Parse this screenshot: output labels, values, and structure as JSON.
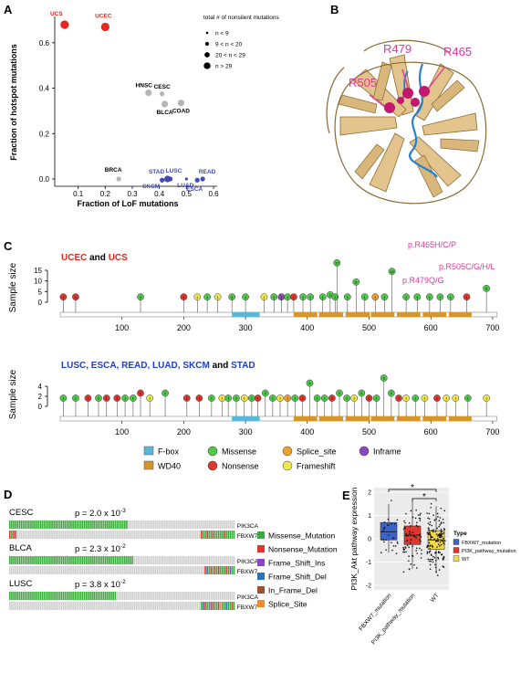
{
  "panels": {
    "A": "A",
    "B": "B",
    "C": "C",
    "D": "D",
    "E": "E"
  },
  "panelA": {
    "xlabel": "Fraction of LoF mutations",
    "ylabel": "Fraction of hotspot mutations",
    "xticks": [
      "0.1",
      "0.2",
      "0.3",
      "0.4",
      "0.5",
      "0.6"
    ],
    "yticks": [
      "0.0",
      "0.2",
      "0.4",
      "0.6"
    ],
    "legend_title": "total # of nonsilent mutations",
    "legend_items": [
      "n < 9",
      "9 < n < 20",
      "20 < n < 29",
      "n > 29"
    ],
    "points": [
      {
        "label": "UCS",
        "x": 0.05,
        "y": 0.68,
        "size": 4,
        "color": "#e8251f"
      },
      {
        "label": "UCEC",
        "x": 0.2,
        "y": 0.67,
        "size": 4,
        "color": "#e8251f"
      },
      {
        "label": "HNSC",
        "x": 0.36,
        "y": 0.38,
        "size": 3,
        "color": "#b5b5b5"
      },
      {
        "label": "CESC",
        "x": 0.41,
        "y": 0.375,
        "size": 2,
        "color": "#b5b5b5"
      },
      {
        "label": "BLCA",
        "x": 0.42,
        "y": 0.33,
        "size": 3,
        "color": "#b5b5b5"
      },
      {
        "label": "COAD",
        "x": 0.48,
        "y": 0.335,
        "size": 3,
        "color": "#b5b5b5"
      },
      {
        "label": "BRCA",
        "x": 0.25,
        "y": 0.0,
        "size": 2,
        "color": "#b5b5b5"
      },
      {
        "label": "STAD",
        "x": 0.43,
        "y": 0.0,
        "size": 3,
        "color": "#3f4ab8"
      },
      {
        "label": "LUSC",
        "x": 0.44,
        "y": 0.0,
        "size": 2,
        "color": "#3f4ab8"
      },
      {
        "label": "SKCM",
        "x": 0.41,
        "y": -0.005,
        "size": 2,
        "color": "#3f4ab8"
      },
      {
        "label": "LUAD",
        "x": 0.5,
        "y": 0.0,
        "size": 1,
        "color": "#3f4ab8"
      },
      {
        "label": "READ",
        "x": 0.56,
        "y": 0.0,
        "size": 2,
        "color": "#3f4ab8"
      },
      {
        "label": "ESCA",
        "x": 0.54,
        "y": -0.005,
        "size": 2,
        "color": "#3f4ab8"
      }
    ]
  },
  "panelB": {
    "labels": [
      "R479",
      "R465",
      "R505"
    ]
  },
  "panelC": {
    "ylabel": "Sample size",
    "top_yticks": [
      "0",
      "5",
      "10",
      "15"
    ],
    "bottom_yticks": [
      "0",
      "2",
      "4"
    ],
    "xticks": [
      "100",
      "200",
      "300",
      "400",
      "500",
      "600",
      "700"
    ],
    "top_group": {
      "a": "UCEC",
      "and": " and ",
      "b": "UCS"
    },
    "bottom_group": {
      "a": "LUSC, ESCA, READ, LUAD, SKCM",
      "and": " and ",
      "b": "STAD"
    },
    "hotspots": [
      "p.R465H/C/P",
      "p.R505C/G/H/L",
      "p.R479Q/G"
    ],
    "legend": [
      {
        "label": "F-box",
        "color": "#5bb7d7",
        "shape": "rect"
      },
      {
        "label": "WD40",
        "color": "#d5952a",
        "shape": "rect"
      },
      {
        "label": "Missense",
        "color": "#4ec94a",
        "shape": "circle"
      },
      {
        "label": "Nonsense",
        "color": "#e0362d",
        "shape": "circle"
      },
      {
        "label": "Splice_site",
        "color": "#f0a030",
        "shape": "circle"
      },
      {
        "label": "Frameshift",
        "color": "#f1e84a",
        "shape": "circle"
      },
      {
        "label": "Inframe",
        "color": "#8f44c4",
        "shape": "circle"
      }
    ]
  },
  "panelD": {
    "cohorts": [
      {
        "name": "CESC",
        "p": "p = 2.0 x 10",
        "exp": "-3"
      },
      {
        "name": "BLCA",
        "p": "p = 2.3 x 10",
        "exp": "-2"
      },
      {
        "name": "LUSC",
        "p": "p = 3.8 x 10",
        "exp": "-2"
      }
    ],
    "genes": [
      "PIK3CA",
      "FBXW7"
    ],
    "legend": [
      {
        "label": "Missense_Mutation",
        "color": "#3caa3c"
      },
      {
        "label": "Nonsense_Mutation",
        "color": "#e0362d"
      },
      {
        "label": "Frame_Shift_Ins",
        "color": "#8f44c4"
      },
      {
        "label": "Frame_Shift_Del",
        "color": "#2a73b5"
      },
      {
        "label": "In_Frame_Del",
        "color": "#a0522d"
      },
      {
        "label": "Splice_Site",
        "color": "#f08c2a"
      }
    ]
  },
  "panelE": {
    "ylabel": "PI3K_Akt pathway expression",
    "yticks": [
      "-2",
      "-1",
      "0",
      "1",
      "2"
    ],
    "categories": [
      "FBXW7_mutation",
      "PI3K_pathway_mutation",
      "WT"
    ],
    "colors": [
      "#3b63c8",
      "#e0362d",
      "#f1d94a"
    ],
    "legend_title": "Type",
    "legend_items": [
      "FBXW7_mutation",
      "PI3K_pathway_mutation",
      "WT"
    ],
    "sig": "*",
    "chart_data": {
      "type": "box",
      "categories": [
        "FBXW7_mutation",
        "PI3K_pathway_mutation",
        "WT"
      ],
      "medians": [
        0.3,
        0.15,
        -0.05
      ],
      "q1": [
        -0.05,
        -0.25,
        -0.45
      ],
      "q3": [
        0.7,
        0.55,
        0.35
      ],
      "whisker_low": [
        -0.6,
        -1.3,
        -1.5
      ],
      "whisker_high": [
        1.5,
        1.7,
        1.4
      ],
      "ylim": [
        -2.2,
        2.2
      ]
    }
  }
}
